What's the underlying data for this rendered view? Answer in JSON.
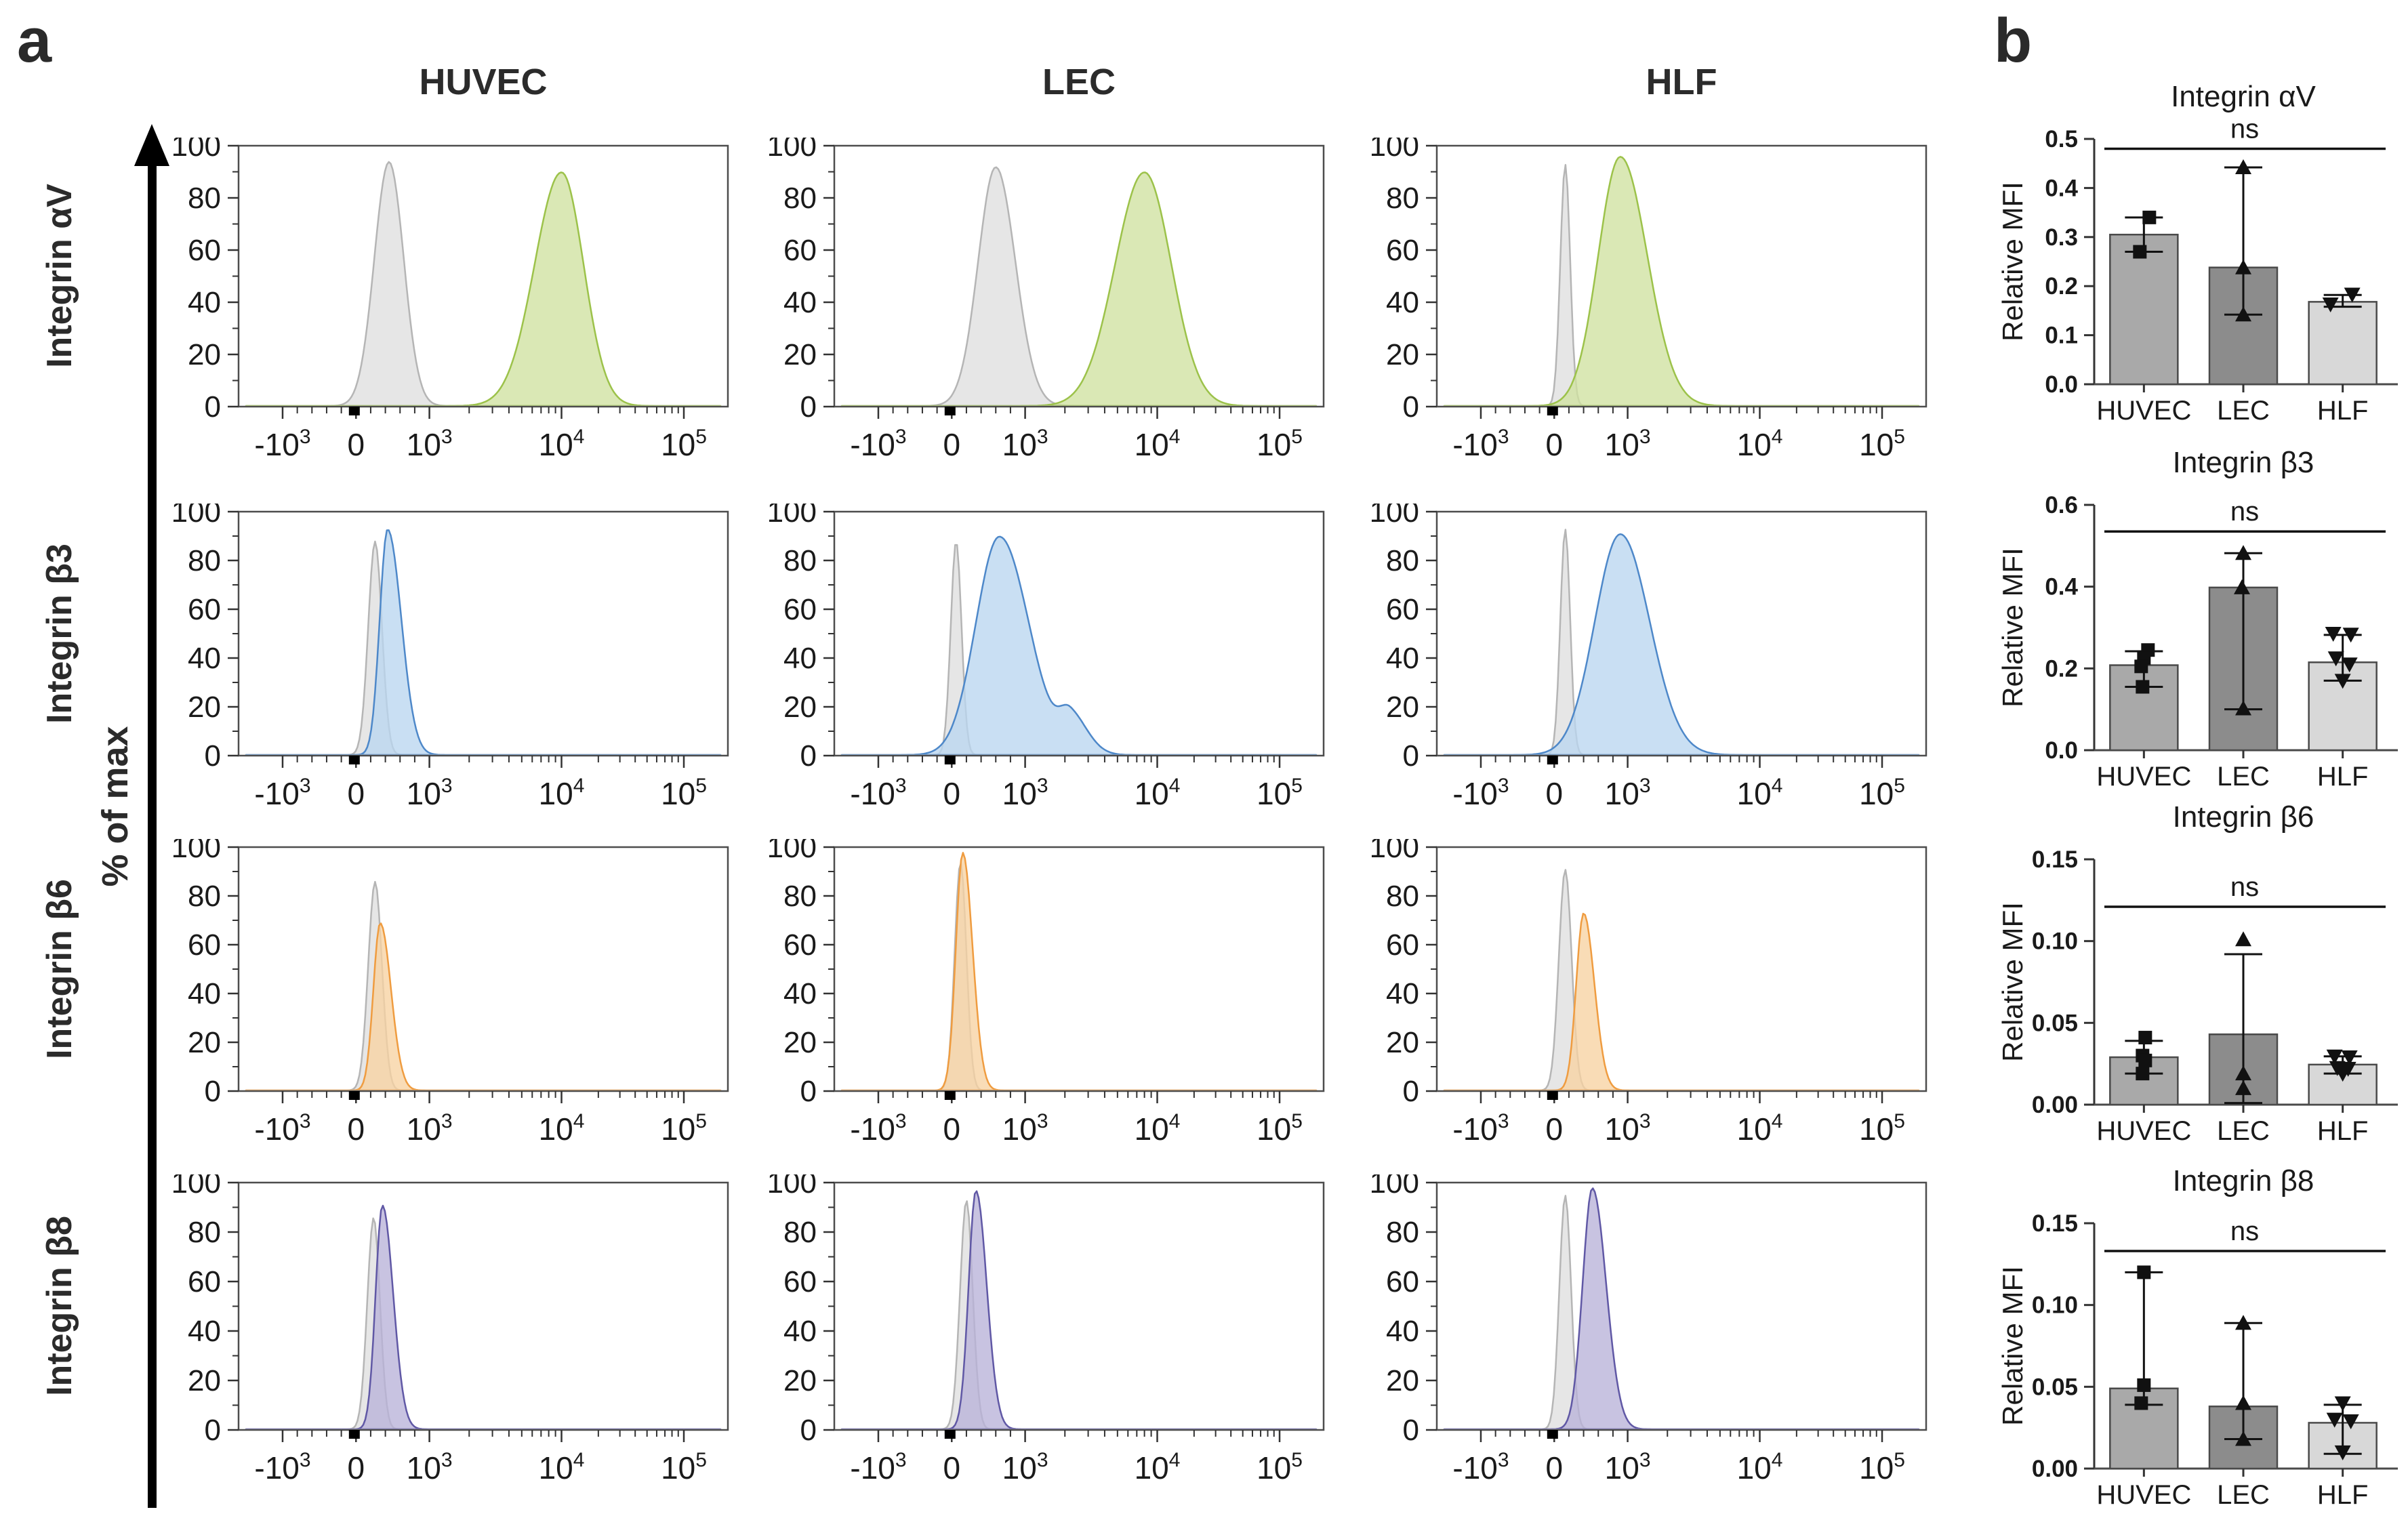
{
  "figure": {
    "panel_a_label": "a",
    "panel_b_label": "b"
  },
  "panel_b_style": {
    "bar_colors": [
      "#a9a9a9",
      "#8c8c8c",
      "#d8d8d8"
    ],
    "bar_stroke": "#4a4a4a",
    "marker_shapes": [
      "square",
      "triangle-up",
      "triangle-down"
    ]
  },
  "chart_data": [
    {
      "type": "area",
      "subtype": "flow_cytometry_histogram_grid",
      "columns": [
        "HUVEC",
        "LEC",
        "HLF"
      ],
      "rows": [
        "Integrin αV",
        "Integrin β3",
        "Integrin β6",
        "Integrin β8"
      ],
      "ylabel": "% of max",
      "ylim": [
        0,
        100
      ],
      "yticks": [
        0,
        20,
        40,
        60,
        80,
        100
      ],
      "x_scale": "biexponential",
      "x_ticks": [
        {
          "t": "-10",
          "e": "3",
          "value": -1000
        },
        {
          "t": "0",
          "e": "",
          "value": 0
        },
        {
          "t": "10",
          "e": "3",
          "value": 1000
        },
        {
          "t": "10",
          "e": "4",
          "value": 10000
        },
        {
          "t": "10",
          "e": "5",
          "value": 100000
        }
      ],
      "grid": false,
      "legend_position": "none",
      "colors": {
        "control": {
          "fill": "#e4e4e4",
          "stroke": "#b5b5b5"
        },
        "green": {
          "fill": "#cfe1a0",
          "stroke": "#9cc24a"
        },
        "blue": {
          "fill": "#bad6ef",
          "stroke": "#4e88c9"
        },
        "orange": {
          "fill": "#f7d2a1",
          "stroke": "#ef9c40"
        },
        "purple": {
          "fill": "#b8b2d8",
          "stroke": "#6058a5"
        }
      },
      "cells": [
        {
          "row": "Integrin αV",
          "col": "HUVEC",
          "color": "green",
          "control": {
            "peak": 450,
            "height": 94,
            "sl": 0.03,
            "sr": 0.03
          },
          "stain": {
            "peak": 10000,
            "height": 90,
            "sl": 0.055,
            "sr": 0.045
          }
        },
        {
          "row": "Integrin αV",
          "col": "LEC",
          "color": "green",
          "control": {
            "peak": 600,
            "height": 92,
            "sl": 0.036,
            "sr": 0.04
          },
          "stain": {
            "peak": 8000,
            "height": 90,
            "sl": 0.06,
            "sr": 0.055
          }
        },
        {
          "row": "Integrin αV",
          "col": "HLF",
          "color": "green",
          "control": {
            "peak": 150,
            "height": 93,
            "sl": 0.01,
            "sr": 0.01
          },
          "stain": {
            "peak": 900,
            "height": 96,
            "sl": 0.045,
            "sr": 0.055
          }
        },
        {
          "row": "Integrin β3",
          "col": "HUVEC",
          "color": "blue",
          "control": {
            "peak": 260,
            "height": 88,
            "sl": 0.014,
            "sr": 0.014
          },
          "stain": {
            "peak": 430,
            "height": 93,
            "sl": 0.016,
            "sr": 0.028
          }
        },
        {
          "row": "Integrin β3",
          "col": "LEC",
          "color": "blue",
          "control": {
            "peak": 60,
            "height": 88,
            "sl": 0.011,
            "sr": 0.011
          },
          "stain": {
            "peak": 650,
            "height": 90,
            "sl": 0.048,
            "sr": 0.06
          },
          "bump": {
            "peak": 2200,
            "height": 15,
            "sl": 0.022,
            "sr": 0.035
          }
        },
        {
          "row": "Integrin β3",
          "col": "HLF",
          "color": "blue",
          "control": {
            "peak": 150,
            "height": 93,
            "sl": 0.01,
            "sr": 0.01
          },
          "stain": {
            "peak": 900,
            "height": 91,
            "sl": 0.052,
            "sr": 0.06
          }
        },
        {
          "row": "Integrin β6",
          "col": "HUVEC",
          "color": "orange",
          "control": {
            "peak": 260,
            "height": 86,
            "sl": 0.014,
            "sr": 0.014
          },
          "stain": {
            "peak": 330,
            "height": 69,
            "sl": 0.014,
            "sr": 0.022
          }
        },
        {
          "row": "Integrin β6",
          "col": "LEC",
          "color": "orange",
          "control": {
            "peak": 120,
            "height": 94,
            "sl": 0.012,
            "sr": 0.012
          },
          "stain": {
            "peak": 150,
            "height": 98,
            "sl": 0.014,
            "sr": 0.02
          }
        },
        {
          "row": "Integrin β6",
          "col": "HLF",
          "color": "orange",
          "control": {
            "peak": 150,
            "height": 91,
            "sl": 0.013,
            "sr": 0.013
          },
          "stain": {
            "peak": 400,
            "height": 73,
            "sl": 0.015,
            "sr": 0.022
          }
        },
        {
          "row": "Integrin β8",
          "col": "HUVEC",
          "color": "purple",
          "control": {
            "peak": 240,
            "height": 86,
            "sl": 0.013,
            "sr": 0.013
          },
          "stain": {
            "peak": 360,
            "height": 91,
            "sl": 0.014,
            "sr": 0.022
          }
        },
        {
          "row": "Integrin β8",
          "col": "LEC",
          "color": "purple",
          "control": {
            "peak": 200,
            "height": 93,
            "sl": 0.013,
            "sr": 0.013
          },
          "stain": {
            "peak": 330,
            "height": 97,
            "sl": 0.015,
            "sr": 0.022
          }
        },
        {
          "row": "Integrin β8",
          "col": "HLF",
          "color": "purple",
          "control": {
            "peak": 150,
            "height": 95,
            "sl": 0.012,
            "sr": 0.012
          },
          "stain": {
            "peak": 520,
            "height": 98,
            "sl": 0.02,
            "sr": 0.028
          }
        }
      ]
    },
    {
      "type": "bar",
      "title": "Integrin αV",
      "ylabel": "Relative MFI",
      "xlabel": "",
      "categories": [
        "HUVEC",
        "LEC",
        "HLF"
      ],
      "ylim": [
        0,
        0.5
      ],
      "yticks": [
        0,
        0.1,
        0.2,
        0.3,
        0.4,
        0.5
      ],
      "ytick_labels": [
        "0.0",
        "0.1",
        "0.2",
        "0.3",
        "0.4",
        "0.5"
      ],
      "ns_label": "ns",
      "ns_line_y": 0.48,
      "values": [
        0.305,
        0.238,
        0.168
      ],
      "errors": [
        [
          0.27,
          0.34
        ],
        [
          0.142,
          0.442
        ],
        [
          0.158,
          0.182
        ]
      ],
      "points": [
        [
          {
            "v": 0.34,
            "dx": 8
          },
          {
            "v": 0.27,
            "dx": -6
          }
        ],
        [
          {
            "v": 0.442,
            "dx": 0
          },
          {
            "v": 0.238,
            "dx": 0
          },
          {
            "v": 0.142,
            "dx": 0
          }
        ],
        [
          {
            "v": 0.163,
            "dx": -18
          },
          {
            "v": 0.183,
            "dx": 14
          }
        ]
      ]
    },
    {
      "type": "bar",
      "title": "Integrin β3",
      "ylabel": "Relative MFI",
      "xlabel": "",
      "categories": [
        "HUVEC",
        "LEC",
        "HLF"
      ],
      "ylim": [
        0,
        0.6
      ],
      "yticks": [
        0,
        0.2,
        0.4,
        0.6
      ],
      "ytick_labels": [
        "0.0",
        "0.2",
        "0.4",
        "0.6"
      ],
      "ns_label": "ns",
      "ns_line_y": 0.535,
      "values": [
        0.208,
        0.398,
        0.215
      ],
      "errors": [
        [
          0.155,
          0.242
        ],
        [
          0.1,
          0.482
        ],
        [
          0.17,
          0.282
        ]
      ],
      "points": [
        [
          {
            "v": 0.245,
            "dx": 6
          },
          {
            "v": 0.225,
            "dx": 0
          },
          {
            "v": 0.205,
            "dx": -4
          },
          {
            "v": 0.155,
            "dx": -2
          }
        ],
        [
          {
            "v": 0.482,
            "dx": 0
          },
          {
            "v": 0.398,
            "dx": -2
          },
          {
            "v": 0.102,
            "dx": 0
          }
        ],
        [
          {
            "v": 0.285,
            "dx": -14
          },
          {
            "v": 0.283,
            "dx": 12
          },
          {
            "v": 0.225,
            "dx": -10
          },
          {
            "v": 0.21,
            "dx": 10
          },
          {
            "v": 0.17,
            "dx": 0
          }
        ]
      ]
    },
    {
      "type": "bar",
      "title": "Integrin β6",
      "ylabel": "Relative MFI",
      "xlabel": "",
      "categories": [
        "HUVEC",
        "LEC",
        "HLF"
      ],
      "ylim": [
        0,
        0.15
      ],
      "yticks": [
        0,
        0.05,
        0.1,
        0.15
      ],
      "ytick_labels": [
        "0.00",
        "0.05",
        "0.10",
        "0.15"
      ],
      "ns_label": "ns",
      "ns_line_y": 0.121,
      "values": [
        0.029,
        0.043,
        0.0245
      ],
      "errors": [
        [
          0.019,
          0.039
        ],
        [
          0.001,
          0.092
        ],
        [
          0.019,
          0.0295
        ]
      ],
      "points": [
        [
          {
            "v": 0.041,
            "dx": 2
          },
          {
            "v": 0.03,
            "dx": -2
          },
          {
            "v": 0.027,
            "dx": 2
          },
          {
            "v": 0.019,
            "dx": -2
          }
        ],
        [
          {
            "v": 0.101,
            "dx": 0
          },
          {
            "v": 0.019,
            "dx": 0
          },
          {
            "v": 0.01,
            "dx": 0
          }
        ],
        [
          {
            "v": 0.0295,
            "dx": -12
          },
          {
            "v": 0.029,
            "dx": 10
          },
          {
            "v": 0.0225,
            "dx": -8
          },
          {
            "v": 0.022,
            "dx": 8
          },
          {
            "v": 0.019,
            "dx": 0
          }
        ]
      ]
    },
    {
      "type": "bar",
      "title": "Integrin β8",
      "ylabel": "Relative MFI",
      "xlabel": "",
      "categories": [
        "HUVEC",
        "LEC",
        "HLF"
      ],
      "ylim": [
        0,
        0.15
      ],
      "yticks": [
        0,
        0.05,
        0.1,
        0.15
      ],
      "ytick_labels": [
        "0.00",
        "0.05",
        "0.10",
        "0.15"
      ],
      "ns_label": "ns",
      "ns_line_y": 0.133,
      "values": [
        0.049,
        0.038,
        0.028
      ],
      "errors": [
        [
          0.039,
          0.12
        ],
        [
          0.018,
          0.089
        ],
        [
          0.009,
          0.039
        ]
      ],
      "points": [
        [
          {
            "v": 0.12,
            "dx": 0
          },
          {
            "v": 0.051,
            "dx": 0
          },
          {
            "v": 0.04,
            "dx": -4
          }
        ],
        [
          {
            "v": 0.089,
            "dx": 0
          },
          {
            "v": 0.04,
            "dx": 0
          },
          {
            "v": 0.018,
            "dx": 0
          }
        ],
        [
          {
            "v": 0.04,
            "dx": 0
          },
          {
            "v": 0.03,
            "dx": -12
          },
          {
            "v": 0.029,
            "dx": 12
          },
          {
            "v": 0.01,
            "dx": 0
          }
        ]
      ]
    }
  ]
}
